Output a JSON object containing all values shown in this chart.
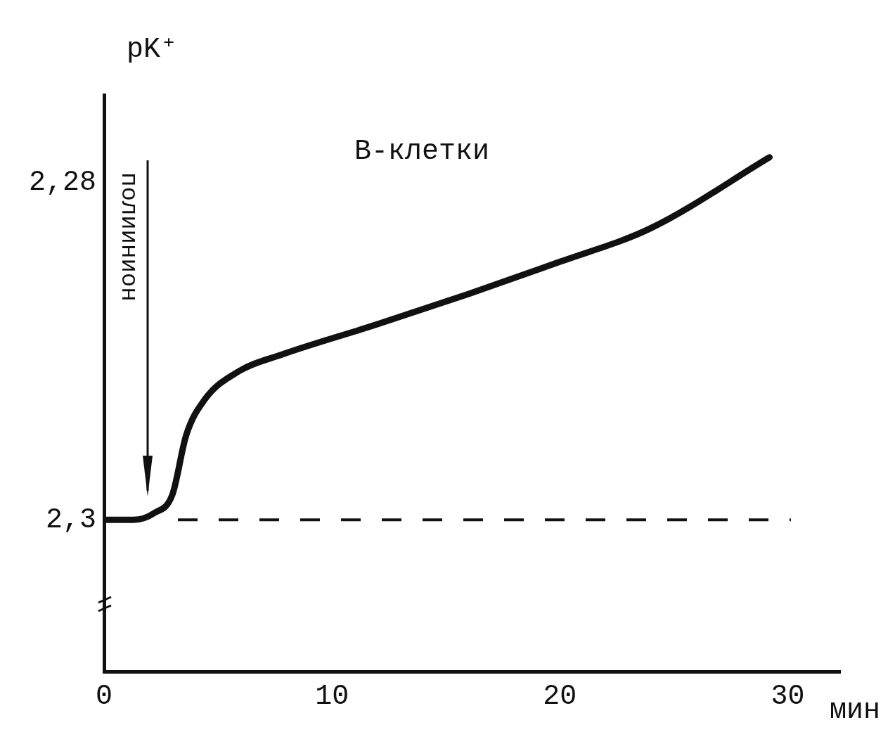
{
  "chart_data": {
    "type": "line",
    "xlabel": "мин",
    "ylabel": "pK⁺",
    "annotations": [
      "В-клетки",
      "полиинион"
    ],
    "x": [
      0,
      1.3,
      2.2,
      3,
      3.6,
      4.4,
      5.9,
      7.8,
      12,
      16,
      20,
      24,
      29.2
    ],
    "series": [
      {
        "color": "#111111",
        "values": [
          2.3,
          2.3,
          2.2996,
          2.2985,
          2.295,
          2.2929,
          2.2912,
          2.2902,
          2.2884,
          2.2866,
          2.2847,
          2.2827,
          2.2785
        ]
      }
    ],
    "xlim": [
      0,
      32.3
    ],
    "xticks": [
      0,
      10,
      20,
      30
    ],
    "ylim": [
      2.309,
      2.2748
    ],
    "yticks": [
      {
        "value": 2.3,
        "label": "2,3"
      },
      {
        "value": 2.28,
        "label": "2,28"
      }
    ],
    "ref_lines": [
      {
        "axis": "y",
        "value": 2.3,
        "color": "#111111",
        "line_style": "dashed"
      }
    ],
    "grid": false,
    "legend": false,
    "marker": "none",
    "line_style": "solid"
  }
}
